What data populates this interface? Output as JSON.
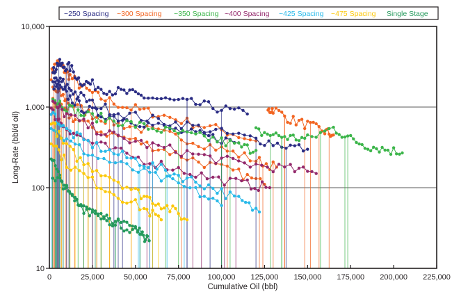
{
  "chart_data": {
    "type": "scatter",
    "title": "",
    "xlabel": "Cumulative Oil (bbl)",
    "ylabel": "Long-Rate (bbl/d oil)",
    "xlim": [
      0,
      225000
    ],
    "ylim": [
      10,
      10000
    ],
    "yscale": "log",
    "grid": "horizontal at 100 and 1,000",
    "legend_position": "top",
    "x_ticks": [
      "0",
      "25,000",
      "50,000",
      "75,000",
      "100,000",
      "125,000",
      "150,000",
      "175,000",
      "200,000",
      "225,000"
    ],
    "x_tick_values": [
      0,
      25000,
      50000,
      75000,
      100000,
      125000,
      150000,
      175000,
      200000,
      225000
    ],
    "y_ticks": [
      "10",
      "100",
      "1,000",
      "10,000"
    ],
    "y_tick_values": [
      10,
      100,
      1000,
      10000
    ],
    "series": [
      {
        "name": "~250 Spacing",
        "color": "#2b2d84",
        "curves": [
          {
            "x": [
              2000,
              5000,
              8000,
              12000,
              18000,
              25000,
              35000,
              45000,
              55000,
              70000,
              85000,
              100000,
              115000
            ],
            "y": [
              2600,
              3500,
              3200,
              3100,
              2100,
              1900,
              1600,
              1500,
              1350,
              1200,
              1100,
              950,
              820
            ]
          },
          {
            "x": [
              3000,
              8000,
              15000,
              25000,
              40000,
              60000,
              80000,
              100000,
              120000,
              135000,
              150000
            ],
            "y": [
              2200,
              2000,
              1500,
              1100,
              850,
              700,
              600,
              480,
              400,
              340,
              300
            ]
          },
          {
            "x": [
              2000,
              6000,
              12000,
              20000,
              30000,
              45000,
              60000,
              80000,
              95000,
              110000
            ],
            "y": [
              1900,
              1700,
              1300,
              950,
              820,
              700,
              600,
              480,
              420,
              360
            ]
          }
        ]
      },
      {
        "name": "~300 Spacing",
        "color": "#f26522",
        "curves": [
          {
            "x": [
              1000,
              4000,
              8000,
              12000,
              20000,
              30000,
              45000,
              60000,
              80000,
              100000,
              120000
            ],
            "y": [
              2500,
              3600,
              3000,
              2400,
              1700,
              1300,
              1000,
              850,
              650,
              520,
              380
            ]
          },
          {
            "x": [
              2000,
              6000,
              12000,
              25000,
              40000,
              60000,
              80000,
              100000,
              120000,
              132000
            ],
            "y": [
              1600,
              1500,
              1100,
              800,
              620,
              500,
              400,
              300,
              220,
              180
            ]
          },
          {
            "x": [
              127000,
              130000,
              140000,
              150000,
              160000,
              165000
            ],
            "y": [
              900,
              950,
              700,
              600,
              500,
              450
            ]
          },
          {
            "x": [
              2000,
              8000,
              15000,
              30000,
              50000,
              70000,
              90000,
              110000,
              125000
            ],
            "y": [
              1200,
              900,
              700,
              500,
              380,
              280,
              200,
              150,
              110
            ]
          }
        ]
      },
      {
        "name": "~350 Spacing",
        "color": "#3cb54a",
        "curves": [
          {
            "x": [
              2000,
              10000,
              20000,
              35000,
              50000,
              65000,
              80000,
              95000,
              110000,
              120000
            ],
            "y": [
              1300,
              1000,
              800,
              700,
              600,
              520,
              450,
              400,
              330,
              290
            ]
          },
          {
            "x": [
              120000,
              130000,
              140000,
              150000,
              165000,
              175000,
              185000,
              195000,
              205000
            ],
            "y": [
              500,
              450,
              420,
              400,
              550,
              400,
              330,
              300,
              270
            ]
          }
        ]
      },
      {
        "name": "~400 Spacing",
        "color": "#93286b",
        "curves": [
          {
            "x": [
              2000,
              10000,
              25000,
              40000,
              60000,
              80000,
              100000,
              120000,
              140000,
              155000
            ],
            "y": [
              1100,
              800,
              550,
              420,
              330,
              270,
              220,
              190,
              170,
              150
            ]
          },
          {
            "x": [
              1000,
              8000,
              20000,
              35000,
              55000,
              75000,
              95000,
              115000,
              128000
            ],
            "y": [
              900,
              600,
              400,
              300,
              220,
              170,
              130,
              110,
              100
            ]
          }
        ]
      },
      {
        "name": "~425 Spacing",
        "color": "#29b9e9",
        "curves": [
          {
            "x": [
              1000,
              8000,
              20000,
              35000,
              50000,
              65000,
              80000,
              95000,
              110000,
              122000
            ],
            "y": [
              900,
              550,
              380,
              280,
              220,
              170,
              130,
              100,
              70,
              50
            ]
          },
          {
            "x": [
              1000,
              10000,
              25000,
              45000,
              65000,
              85000,
              100000
            ],
            "y": [
              600,
              380,
              250,
              180,
              130,
              90,
              60
            ]
          }
        ]
      },
      {
        "name": "~475 Spacing",
        "color": "#fcc80a",
        "curves": [
          {
            "x": [
              1000,
              8000,
              20000,
              35000,
              50000,
              60000,
              70000,
              80000
            ],
            "y": [
              700,
              350,
              200,
              140,
              90,
              70,
              55,
              40
            ]
          },
          {
            "x": [
              1000,
              10000,
              25000,
              40000,
              55000,
              65000
            ],
            "y": [
              400,
              200,
              120,
              80,
              55,
              40
            ]
          }
        ]
      },
      {
        "name": "Single Stage",
        "color": "#259a5c",
        "curves": [
          {
            "x": [
              1000,
              6000,
              12000,
              20000,
              30000,
              40000,
              50000,
              57000
            ],
            "y": [
              250,
              130,
              80,
              55,
              45,
              38,
              30,
              25
            ]
          },
          {
            "x": [
              2000,
              10000,
              20000,
              30000,
              40000,
              50000,
              58000
            ],
            "y": [
              150,
              90,
              60,
              45,
              35,
              30,
              22
            ]
          }
        ]
      }
    ]
  },
  "legend": {
    "items": [
      {
        "label": "~250 Spacing",
        "color": "#2b2d84"
      },
      {
        "label": "~300 Spacing",
        "color": "#f26522"
      },
      {
        "label": "~350 Spacing",
        "color": "#3cb54a"
      },
      {
        "label": "~400 Spacing",
        "color": "#93286b"
      },
      {
        "label": "~425 Spacing",
        "color": "#29b9e9"
      },
      {
        "label": "~475 Spacing",
        "color": "#fcc80a"
      },
      {
        "label": "Single Stage",
        "color": "#259a5c"
      }
    ]
  }
}
